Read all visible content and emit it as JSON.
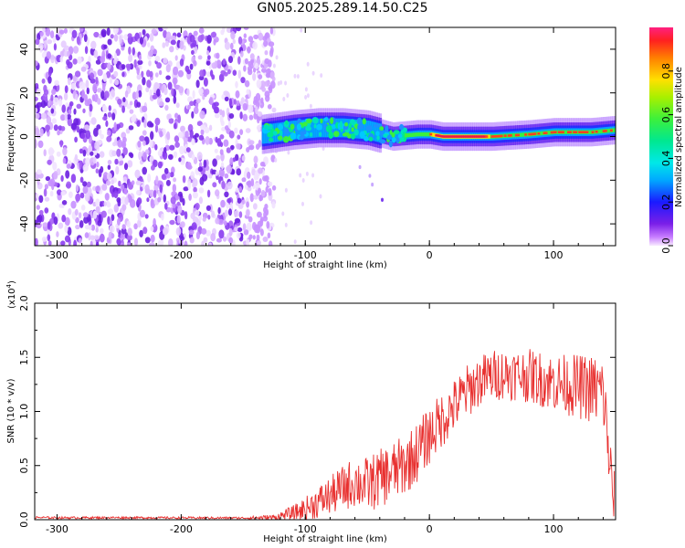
{
  "title": "GN05.2025.289.14.50.C25",
  "chart_data": [
    {
      "type": "heatmap",
      "title": "GN05.2025.289.14.50.C25",
      "xlabel": "Height of straight line (km)",
      "ylabel": "Frequency (Hz)",
      "xlim": [
        -318,
        150
      ],
      "ylim": [
        -50,
        50
      ],
      "xticks": [
        -300,
        -200,
        -100,
        0,
        100
      ],
      "yticks": [
        -40,
        -20,
        0,
        20,
        40
      ],
      "noise_region_x": [
        -318,
        -125
      ],
      "ridge": [
        {
          "x": -135,
          "freq": 1
        },
        {
          "x": -110,
          "freq": 3
        },
        {
          "x": -90,
          "freq": 4
        },
        {
          "x": -70,
          "freq": 4
        },
        {
          "x": -50,
          "freq": 3
        },
        {
          "x": -30,
          "freq": 0
        },
        {
          "x": -10,
          "freq": 1
        },
        {
          "x": 0,
          "freq": 1
        },
        {
          "x": 10,
          "freq": 0
        },
        {
          "x": 50,
          "freq": 0
        },
        {
          "x": 80,
          "freq": 1
        },
        {
          "x": 100,
          "freq": 2
        },
        {
          "x": 130,
          "freq": 2
        },
        {
          "x": 150,
          "freq": 3
        }
      ],
      "peak_region_x": [
        0,
        150
      ],
      "colorbar": {
        "label": "Normalized spectral amplitude",
        "range": [
          0,
          1
        ],
        "ticks": [
          "0.0",
          "0.2",
          "0.4",
          "0.6",
          "0.8"
        ]
      }
    },
    {
      "type": "line",
      "xlabel": "Height of straight line (km)",
      "ylabel": "SNR (10 * v/v)",
      "scale_label": "(x10",
      "scale_exp": "4",
      "scale_close": ")",
      "xlim": [
        -318,
        150
      ],
      "ylim": [
        0,
        20000
      ],
      "xticks": [
        -300,
        -200,
        -100,
        0,
        100
      ],
      "yticks": [
        "0.0",
        "0.5",
        "1.0",
        "1.5",
        "2.0"
      ],
      "ytick_values": [
        0,
        5000,
        10000,
        15000,
        20000
      ],
      "color": "#e8302f",
      "series": [
        {
          "name": "SNR",
          "x": [
            -318,
            -300,
            -250,
            -200,
            -150,
            -125,
            -110,
            -100,
            -90,
            -80,
            -70,
            -60,
            -50,
            -40,
            -30,
            -20,
            -10,
            0,
            10,
            20,
            30,
            40,
            50,
            60,
            70,
            80,
            90,
            100,
            110,
            120,
            130,
            140,
            148
          ],
          "y": [
            200,
            180,
            190,
            170,
            160,
            200,
            600,
            1000,
            1600,
            2200,
            2900,
            3500,
            3200,
            3800,
            4400,
            5000,
            6200,
            7800,
            9200,
            10500,
            11800,
            12800,
            13300,
            13500,
            13400,
            13300,
            13000,
            12700,
            12500,
            12300,
            12100,
            11800,
            2000
          ],
          "noise": [
            100,
            100,
            100,
            100,
            100,
            300,
            700,
            1100,
            1500,
            1800,
            2100,
            2400,
            2600,
            2700,
            2800,
            2800,
            2800,
            2700,
            2600,
            2500,
            2500,
            2400,
            2400,
            2400,
            2400,
            2500,
            2600,
            2700,
            2800,
            3000,
            3200,
            3500,
            3000
          ]
        }
      ]
    }
  ]
}
